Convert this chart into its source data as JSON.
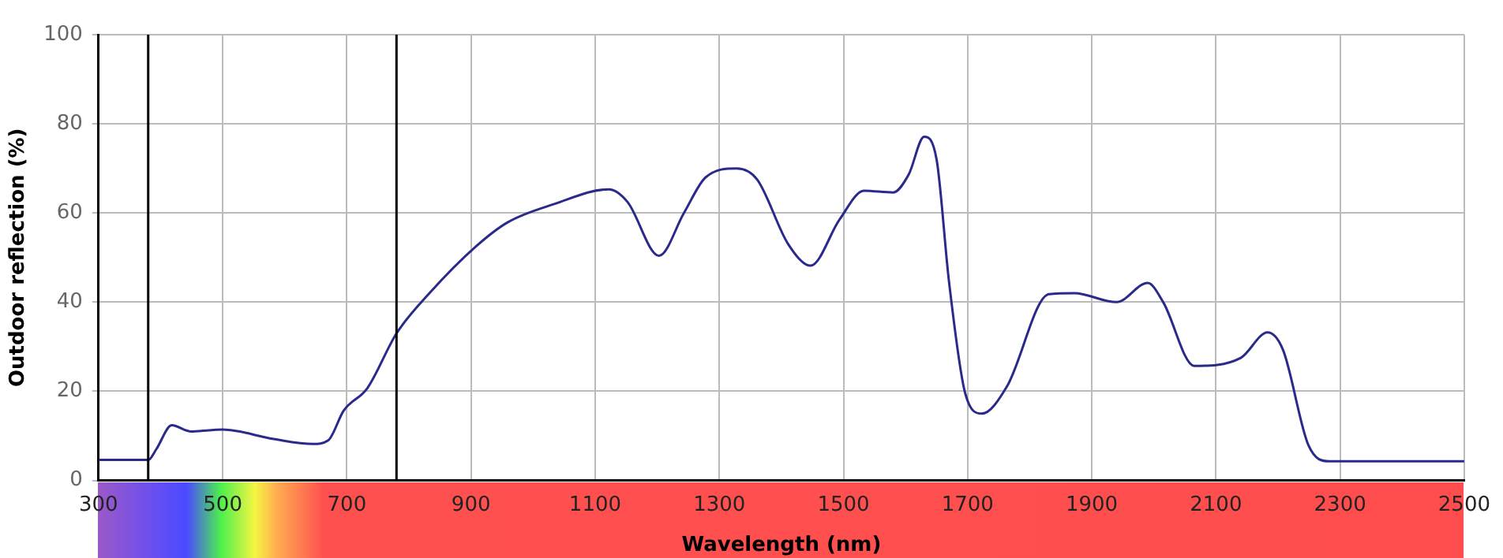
{
  "chart_data": {
    "type": "line",
    "xlabel": "Wavelength (nm)",
    "ylabel": "Outdoor reflection (%)",
    "xlim": [
      300,
      2500
    ],
    "xticks": [
      300,
      500,
      700,
      900,
      1100,
      1300,
      1500,
      1700,
      1900,
      2100,
      2300,
      2500
    ],
    "ylim": [
      0,
      100
    ],
    "yticks": [
      0,
      20,
      40,
      60,
      80,
      100
    ],
    "grid": true,
    "legend": false,
    "marker": "none",
    "line_style": "solid",
    "ref_lines": [
      {
        "axis": "x",
        "value": 380,
        "color": "#000000"
      },
      {
        "axis": "x",
        "value": 780,
        "color": "#000000"
      }
    ],
    "series": [
      {
        "color": "#2a2a8a",
        "x": [
          300,
          380,
          393,
          418,
          448,
          500,
          582,
          645,
          670,
          695,
          733,
          780,
          833,
          908,
          959,
          1034,
          1122,
          1152,
          1203,
          1243,
          1278,
          1328,
          1361,
          1411,
          1447,
          1494,
          1533,
          1580,
          1605,
          1630,
          1650,
          1670,
          1696,
          1723,
          1763,
          1831,
          1872,
          1940,
          1990,
          2015,
          2065,
          2140,
          2183,
          2208,
          2249,
          2283,
          2500
        ],
        "values": [
          4.6,
          4.6,
          7,
          12.4,
          11,
          11.4,
          9.3,
          8.2,
          9,
          15.7,
          20.7,
          33,
          42,
          52.5,
          57.9,
          62,
          65.3,
          62.5,
          50.4,
          60,
          68,
          70,
          67.5,
          53,
          48.2,
          58.6,
          65,
          64.6,
          68.6,
          77.1,
          72,
          44.6,
          19.6,
          15,
          21,
          41.8,
          42,
          40,
          44.3,
          40,
          25.7,
          27.5,
          33.2,
          29.3,
          7.9,
          4.3,
          4.3
        ]
      }
    ]
  }
}
